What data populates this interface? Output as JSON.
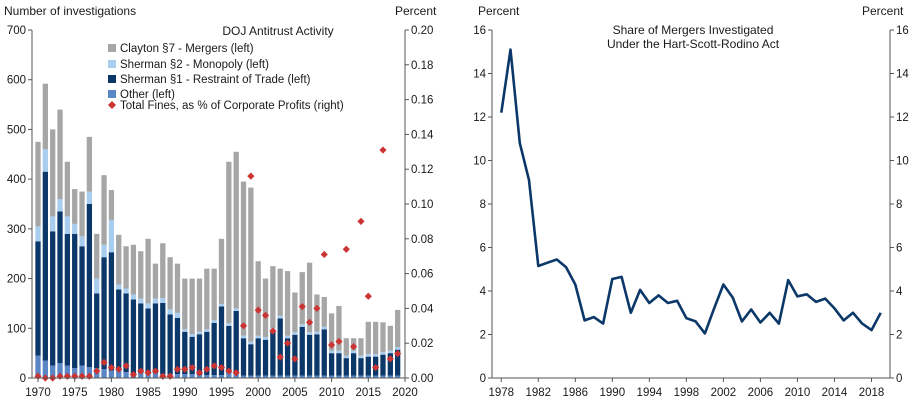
{
  "chart_data": [
    {
      "type": "bar",
      "stacked": true,
      "title": "DOJ Antitrust Activity",
      "ylabel_left": "Number of investigations",
      "ylabel_right": "Percent",
      "ylim_left": [
        0,
        700
      ],
      "ylim_right": [
        0,
        0.2
      ],
      "yticks_left": [
        "0",
        "100",
        "200",
        "300",
        "400",
        "500",
        "600",
        "700"
      ],
      "yticks_right": [
        "0.00",
        "0.02",
        "0.04",
        "0.06",
        "0.08",
        "0.10",
        "0.12",
        "0.14",
        "0.16",
        "0.18",
        "0.20"
      ],
      "xticks": [
        "1970",
        "1975",
        "1980",
        "1985",
        "1990",
        "1995",
        "2000",
        "2005",
        "2010",
        "2015",
        "2020"
      ],
      "categories": [
        1970,
        1971,
        1972,
        1973,
        1974,
        1975,
        1976,
        1977,
        1978,
        1979,
        1980,
        1981,
        1982,
        1983,
        1984,
        1985,
        1986,
        1987,
        1988,
        1989,
        1990,
        1991,
        1992,
        1993,
        1994,
        1995,
        1996,
        1997,
        1998,
        1999,
        2000,
        2001,
        2002,
        2003,
        2004,
        2005,
        2006,
        2007,
        2008,
        2009,
        2010,
        2011,
        2012,
        2013,
        2014,
        2015,
        2016,
        2017,
        2018,
        2019
      ],
      "series": [
        {
          "name": "Other  (left)",
          "color": "#5b86c5",
          "values": [
            45,
            35,
            25,
            30,
            25,
            20,
            25,
            22,
            20,
            18,
            15,
            15,
            12,
            10,
            10,
            10,
            10,
            8,
            8,
            8,
            8,
            8,
            6,
            6,
            6,
            6,
            10,
            10,
            5,
            5,
            5,
            5,
            5,
            5,
            5,
            5,
            5,
            5,
            5,
            5,
            5,
            5,
            5,
            5,
            5,
            5,
            5,
            5,
            5,
            5
          ]
        },
        {
          "name": "Sherman §1 - Restraint of Trade (left)",
          "color": "#0b3868",
          "values": [
            230,
            380,
            270,
            305,
            265,
            270,
            240,
            328,
            150,
            225,
            238,
            163,
            158,
            148,
            140,
            130,
            140,
            143,
            120,
            113,
            85,
            75,
            82,
            87,
            105,
            138,
            95,
            125,
            75,
            63,
            75,
            72,
            90,
            115,
            75,
            82,
            98,
            82,
            83,
            93,
            45,
            45,
            35,
            45,
            35,
            38,
            38,
            42,
            45,
            52
          ]
        },
        {
          "name": "Sherman §2 - Monopoly (left)",
          "color": "#a9cdee",
          "values": [
            30,
            45,
            30,
            25,
            35,
            20,
            20,
            25,
            30,
            25,
            65,
            10,
            10,
            10,
            10,
            10,
            10,
            10,
            10,
            10,
            5,
            5,
            5,
            5,
            5,
            5,
            5,
            5,
            5,
            5,
            5,
            5,
            5,
            5,
            5,
            5,
            5,
            5,
            5,
            5,
            5,
            5,
            5,
            5,
            5,
            5,
            5,
            5,
            5,
            5
          ]
        },
        {
          "name": "Clayton §7 - Mergers  (left)",
          "color": "#a6a6a6",
          "values": [
            170,
            132,
            175,
            180,
            110,
            70,
            90,
            110,
            90,
            140,
            60,
            100,
            85,
            100,
            95,
            130,
            70,
            110,
            105,
            99,
            102,
            112,
            107,
            122,
            104,
            131,
            325,
            315,
            310,
            310,
            150,
            118,
            125,
            95,
            130,
            80,
            105,
            140,
            75,
            60,
            75,
            90,
            35,
            25,
            35,
            65,
            65,
            60,
            50,
            75
          ]
        }
      ],
      "fines_series": {
        "name": "Total Fines, as % of Corporate Profits (right)",
        "color": "#cc3333",
        "x": [
          1970,
          1971,
          1972,
          1973,
          1974,
          1975,
          1976,
          1977,
          1978,
          1979,
          1980,
          1981,
          1982,
          1983,
          1984,
          1985,
          1986,
          1987,
          1988,
          1989,
          1990,
          1991,
          1992,
          1993,
          1994,
          1995,
          1996,
          1997,
          1998,
          1999,
          2000,
          2001,
          2002,
          2003,
          2004,
          2005,
          2006,
          2007,
          2008,
          2009,
          2010,
          2011,
          2012,
          2013,
          2014,
          2015,
          2016,
          2017,
          2018,
          2019
        ],
        "values": [
          0.001,
          0.0,
          0.0,
          0.001,
          0.001,
          0.001,
          0.001,
          0.001,
          0.004,
          0.009,
          0.006,
          0.005,
          0.007,
          0.002,
          0.004,
          0.003,
          0.004,
          0.001,
          0.001,
          0.005,
          0.005,
          0.006,
          0.003,
          0.005,
          0.007,
          0.006,
          0.004,
          0.003,
          0.03,
          0.116,
          0.039,
          0.036,
          0.027,
          0.012,
          0.02,
          0.011,
          0.041,
          0.032,
          0.04,
          0.071,
          0.019,
          0.021,
          0.074,
          0.018,
          0.09,
          0.047,
          0.006,
          0.131,
          0.011,
          0.014
        ]
      }
    },
    {
      "type": "line",
      "title": "Share of Mergers Investigated",
      "subtitle": "Under the Hart-Scott-Rodino  Act",
      "ylabel_left": "Percent",
      "ylabel_right": "Percent",
      "ylim": [
        0,
        16
      ],
      "xlim": [
        1977,
        2020
      ],
      "yticks": [
        "0",
        "2",
        "4",
        "6",
        "8",
        "10",
        "12",
        "14",
        "16"
      ],
      "xticks": [
        "1978",
        "1982",
        "1986",
        "1990",
        "1994",
        "1998",
        "2002",
        "2006",
        "2010",
        "2014",
        "2018"
      ],
      "color": "#0b3868",
      "x": [
        1978,
        1979,
        1980,
        1981,
        1982,
        1983,
        1984,
        1985,
        1986,
        1987,
        1988,
        1989,
        1990,
        1991,
        1992,
        1993,
        1994,
        1995,
        1996,
        1997,
        1998,
        1999,
        2000,
        2001,
        2002,
        2003,
        2004,
        2005,
        2006,
        2007,
        2008,
        2009,
        2010,
        2011,
        2012,
        2013,
        2014,
        2015,
        2016,
        2017,
        2018,
        2019
      ],
      "values": [
        12.2,
        15.1,
        10.8,
        9.1,
        5.15,
        5.3,
        5.45,
        5.1,
        4.3,
        2.65,
        2.8,
        2.5,
        4.55,
        4.65,
        3.0,
        4.05,
        3.45,
        3.8,
        3.45,
        3.55,
        2.75,
        2.6,
        2.05,
        3.2,
        4.3,
        3.7,
        2.6,
        3.15,
        2.55,
        3.0,
        2.5,
        4.5,
        3.75,
        3.85,
        3.5,
        3.65,
        3.2,
        2.65,
        3.0,
        2.5,
        2.2,
        3.0
      ]
    }
  ]
}
